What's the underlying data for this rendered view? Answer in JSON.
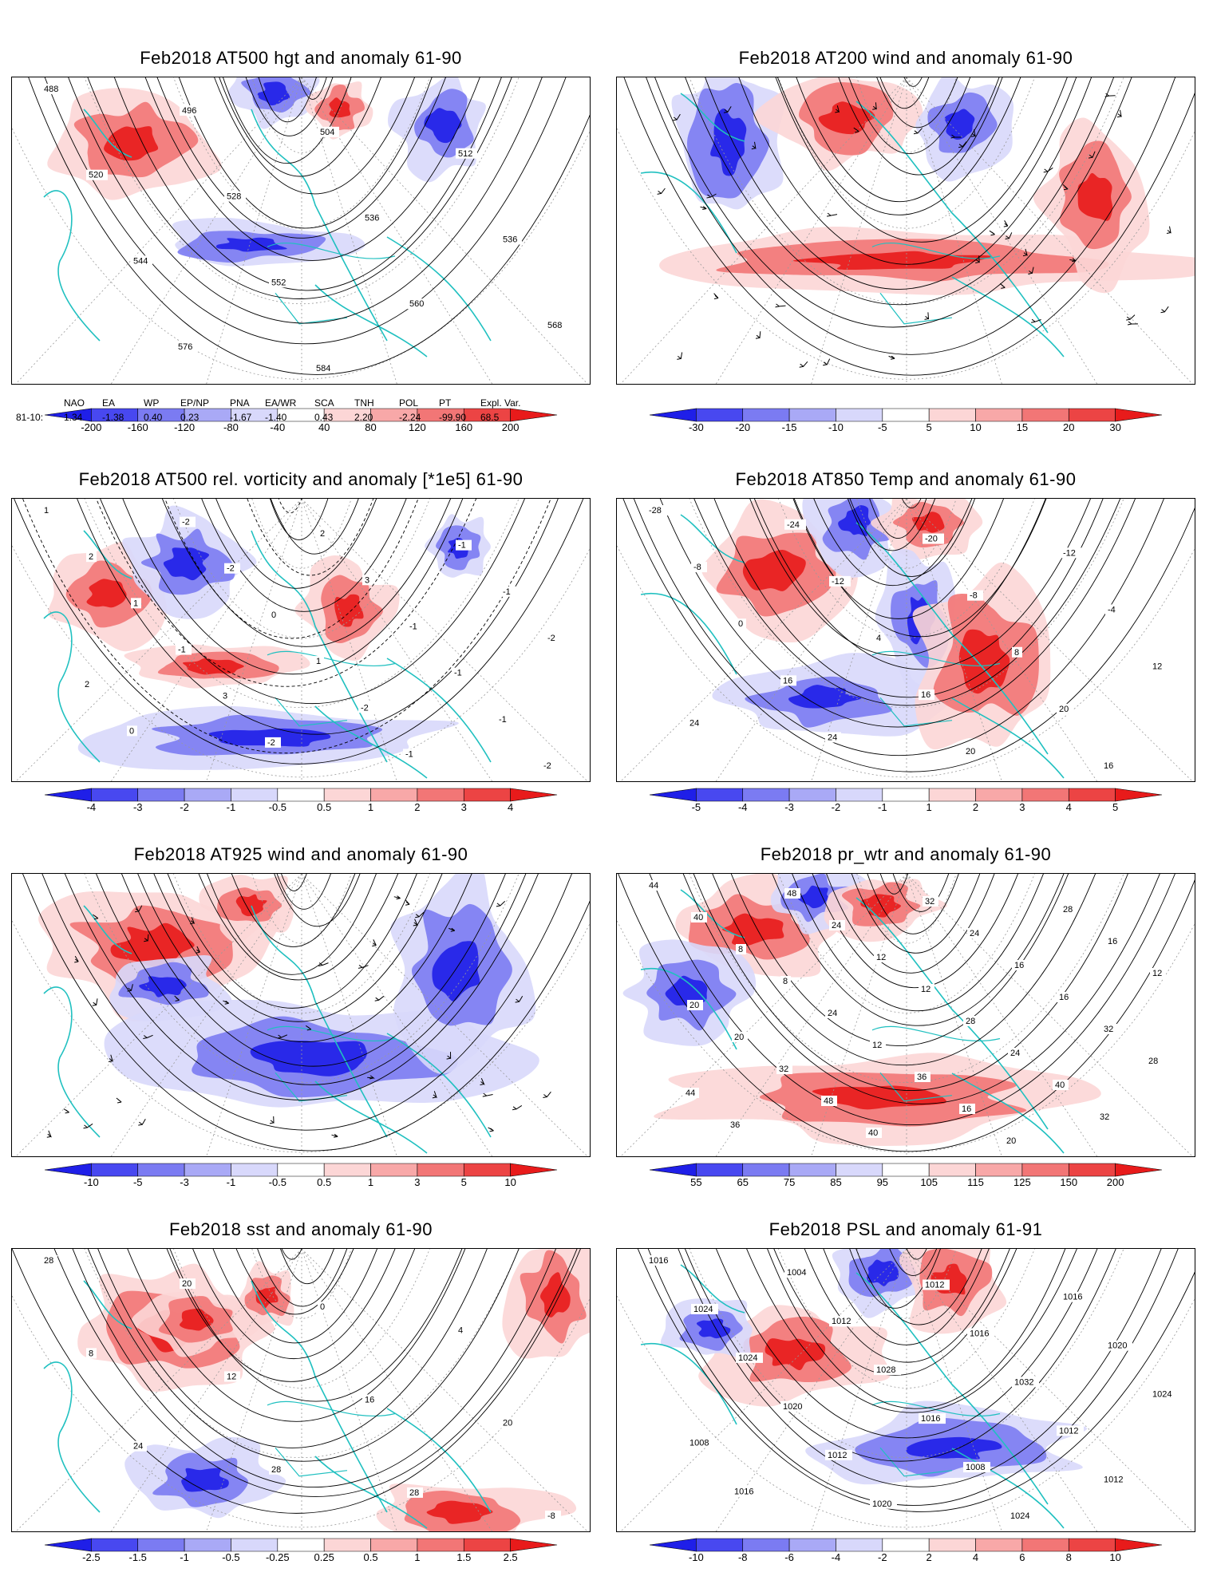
{
  "panels": [
    {
      "title": "Feb2018 AT500 hgt and anomaly 61-90",
      "contour_labels": [
        "488",
        "496",
        "504",
        "512",
        "520",
        "528",
        "536",
        "536",
        "544",
        "552",
        "560",
        "568",
        "576",
        "584"
      ],
      "colorbar": {
        "labels": [
          "-200",
          "-160",
          "-120",
          "-80",
          "-40",
          "40",
          "80",
          "120",
          "160",
          "200"
        ],
        "colors": [
          "#1f1fe8",
          "#4848f0",
          "#7b7bf2",
          "#a9a9f6",
          "#d8d8fb",
          "#ffffff",
          "#fcd6d6",
          "#f8a8a8",
          "#f27676",
          "#ec4444",
          "#e81b1b"
        ]
      }
    },
    {
      "title": "Feb2018 AT200 wind and anomaly 61-90",
      "contour_labels": [],
      "colorbar": {
        "labels": [
          "-30",
          "-20",
          "-15",
          "-10",
          "-5",
          "5",
          "10",
          "15",
          "20",
          "30"
        ],
        "colors": [
          "#1f1fe8",
          "#4848f0",
          "#7b7bf2",
          "#a9a9f6",
          "#d8d8fb",
          "#ffffff",
          "#fcd6d6",
          "#f8a8a8",
          "#f27676",
          "#ec4444",
          "#e81b1b"
        ]
      }
    },
    {
      "title": "Feb2018 AT500 rel. vorticity and anomaly [*1e5] 61-90",
      "contour_labels": [
        "1",
        "-2",
        "2",
        "-1",
        "2",
        "-2",
        "3",
        "-1",
        "1",
        "0",
        "-1",
        "-2",
        "-1",
        "1",
        "-1",
        "2",
        "3",
        "-2",
        "-1",
        "0",
        "-2",
        "-1",
        "-2"
      ],
      "colorbar": {
        "labels": [
          "-4",
          "-3",
          "-2",
          "-1",
          "-0.5",
          "0.5",
          "1",
          "2",
          "3",
          "4"
        ],
        "colors": [
          "#1f1fe8",
          "#4848f0",
          "#7b7bf2",
          "#a9a9f6",
          "#d8d8fb",
          "#ffffff",
          "#fcd6d6",
          "#f8a8a8",
          "#f27676",
          "#ec4444",
          "#e81b1b"
        ]
      }
    },
    {
      "title": "Feb2018 AT850 Temp and anomaly 61-90",
      "contour_labels": [
        "-28",
        "-24",
        "-20",
        "-12",
        "-8",
        "-12",
        "-8",
        "-4",
        "0",
        "4",
        "8",
        "12",
        "16",
        "16",
        "20",
        "24",
        "24",
        "20",
        "16"
      ],
      "colorbar": {
        "labels": [
          "-5",
          "-4",
          "-3",
          "-2",
          "-1",
          "1",
          "2",
          "3",
          "4",
          "5"
        ],
        "colors": [
          "#1f1fe8",
          "#4848f0",
          "#7b7bf2",
          "#a9a9f6",
          "#d8d8fb",
          "#ffffff",
          "#fcd6d6",
          "#f8a8a8",
          "#f27676",
          "#ec4444",
          "#e81b1b"
        ]
      }
    },
    {
      "title": "Feb2018 AT925 wind and anomaly 61-90",
      "contour_labels": [],
      "colorbar": {
        "labels": [
          "-10",
          "-5",
          "-3",
          "-1",
          "-0.5",
          "0.5",
          "1",
          "3",
          "5",
          "10"
        ],
        "colors": [
          "#1f1fe8",
          "#4848f0",
          "#7b7bf2",
          "#a9a9f6",
          "#d8d8fb",
          "#ffffff",
          "#fcd6d6",
          "#f8a8a8",
          "#f27676",
          "#ec4444",
          "#e81b1b"
        ]
      }
    },
    {
      "title": "Feb2018 pr_wtr and anomaly 61-90",
      "contour_labels": [
        "44",
        "48",
        "32",
        "28",
        "40",
        "24",
        "24",
        "16",
        "8",
        "12",
        "16",
        "12",
        "8",
        "12",
        "16",
        "20",
        "24",
        "28",
        "32",
        "20",
        "12",
        "24",
        "28",
        "32",
        "36",
        "40",
        "44",
        "48",
        "16",
        "32",
        "36",
        "40",
        "20"
      ],
      "colorbar": {
        "labels": [
          "55",
          "65",
          "75",
          "85",
          "95",
          "105",
          "115",
          "125",
          "150",
          "200"
        ],
        "colors": [
          "#1f1fe8",
          "#4848f0",
          "#7b7bf2",
          "#a9a9f6",
          "#d8d8fb",
          "#ffffff",
          "#fcd6d6",
          "#f8a8a8",
          "#f27676",
          "#ec4444",
          "#e81b1b"
        ]
      }
    },
    {
      "title": "Feb2018 sst and anomaly 61-90",
      "contour_labels": [
        "28",
        "20",
        "0",
        "4",
        "8",
        "12",
        "16",
        "20",
        "24",
        "28",
        "28",
        "-8"
      ],
      "colorbar": {
        "labels": [
          "-2.5",
          "-1.5",
          "-1",
          "-0.5",
          "-0.25",
          "0.25",
          "0.5",
          "1",
          "1.5",
          "2.5"
        ],
        "colors": [
          "#1f1fe8",
          "#4848f0",
          "#7b7bf2",
          "#a9a9f6",
          "#d8d8fb",
          "#ffffff",
          "#fcd6d6",
          "#f8a8a8",
          "#f27676",
          "#ec4444",
          "#e81b1b"
        ]
      }
    },
    {
      "title": "Feb2018 PSL and anomaly 61-91",
      "contour_labels": [
        "1016",
        "1004",
        "1012",
        "1016",
        "1024",
        "1012",
        "1016",
        "1020",
        "1024",
        "1028",
        "1032",
        "1024",
        "1020",
        "1016",
        "1012",
        "1008",
        "1012",
        "1008",
        "1012",
        "1016",
        "1020",
        "1024"
      ],
      "colorbar": {
        "labels": [
          "-10",
          "-8",
          "-6",
          "-4",
          "-2",
          "2",
          "4",
          "6",
          "8",
          "10"
        ],
        "colors": [
          "#1f1fe8",
          "#4848f0",
          "#7b7bf2",
          "#a9a9f6",
          "#d8d8fb",
          "#ffffff",
          "#fcd6d6",
          "#f8a8a8",
          "#f27676",
          "#ec4444",
          "#e81b1b"
        ]
      }
    }
  ],
  "teleconnections": {
    "row_label": "81-10:",
    "headers": [
      "NAO",
      "EA",
      "WP",
      "EP/NP",
      "PNA",
      "EA/WR",
      "SCA",
      "TNH",
      "POL",
      "PT",
      "Expl. Var."
    ],
    "values": [
      "1.34",
      "-1.38",
      "0.40",
      "0.23",
      "-1.67",
      "-1.40",
      "0.43",
      "2.20",
      "-2.24",
      "-99.90",
      "68.5"
    ]
  }
}
